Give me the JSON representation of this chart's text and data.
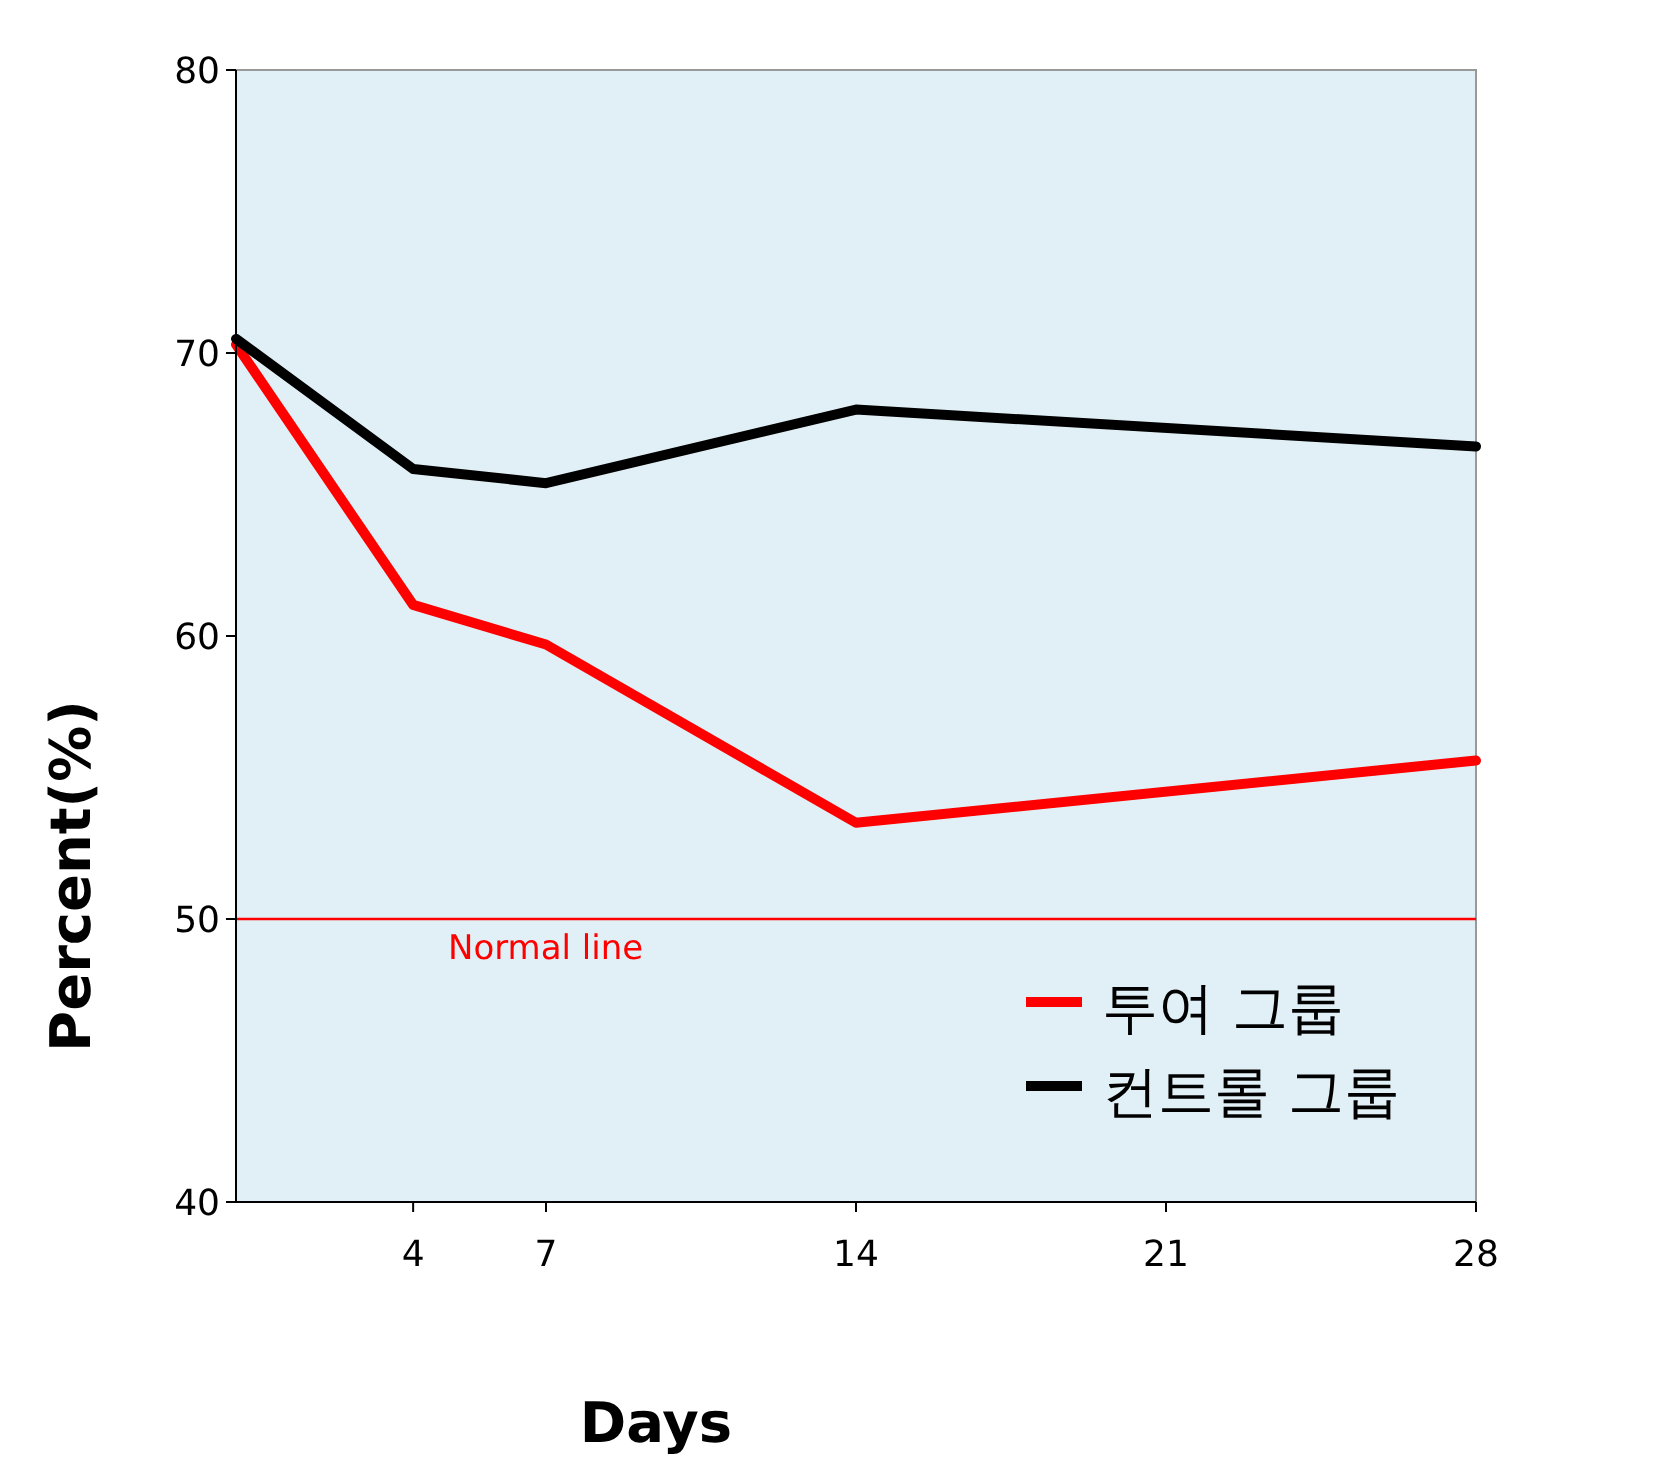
{
  "chart_data": {
    "type": "line",
    "xlabel": "Days",
    "ylabel": "Percent(%)",
    "x": [
      0,
      4,
      7,
      14,
      28
    ],
    "series": [
      {
        "name": "투여 그룹",
        "color": "#ff0000",
        "values": [
          70.3,
          61.1,
          59.7,
          53.4,
          55.6
        ]
      },
      {
        "name": "컨트롤 그룹",
        "color": "#000000",
        "values": [
          70.5,
          65.9,
          65.4,
          68.0,
          66.7
        ]
      }
    ],
    "xlim": [
      0,
      28
    ],
    "xticks": [
      4,
      7,
      14,
      21,
      28
    ],
    "ylim": [
      40,
      80
    ],
    "yticks": [
      40,
      50,
      60,
      70,
      80
    ],
    "ref_lines": [
      {
        "axis": "y",
        "value": 50,
        "label": "Normal line",
        "color": "#ff0000"
      }
    ],
    "grid": false,
    "legend": "bottom right",
    "marker": "none",
    "line_style": "solid"
  }
}
